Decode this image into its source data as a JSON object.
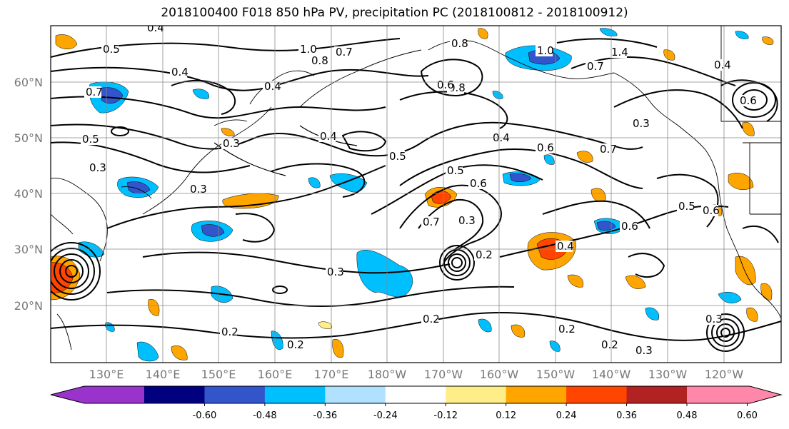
{
  "title": "2018100400 F018 850 hPa PV, precipitation PC (2018100812 - 2018100912)",
  "lat_labels": [
    "60°N",
    "50°N",
    "40°N",
    "30°N",
    "20°N"
  ],
  "lon_labels": [
    "130°E",
    "140°E",
    "150°E",
    "160°E",
    "170°E",
    "180°W",
    "170°W",
    "160°W",
    "150°W",
    "140°W",
    "130°W",
    "120°W"
  ],
  "colorbar": {
    "colors": [
      "#9933cc",
      "#000080",
      "#3355cc",
      "#00bfff",
      "#b0e2ff",
      "#ffffff",
      "#ffee88",
      "#ffa500",
      "#ff4500",
      "#b22222",
      "#ff88aa"
    ],
    "ticks": [
      "-0.60",
      "-0.48",
      "-0.36",
      "-0.24",
      "-0.12",
      "0.12",
      "0.24",
      "0.36",
      "0.48",
      "0.60"
    ]
  },
  "contour_labels": [
    "0.4",
    "0.5",
    "1.0",
    "0.8",
    "0.7",
    "1.0",
    "1.4",
    "0.7",
    "0.8",
    "0.4",
    "0.8",
    "0.4",
    "0.7",
    "0.6",
    "0.6",
    "0.5",
    "0.3",
    "0.4",
    "0.4",
    "0.6",
    "0.7",
    "0.5",
    "0.5",
    "0.6",
    "0.4",
    "0.3",
    "0.3",
    "0.7",
    "0.3",
    "0.3",
    "0.6",
    "0.4",
    "0.5",
    "0.6",
    "0.2",
    "0.2",
    "0.2",
    "0.2",
    "0.2",
    "0.3",
    "0.2",
    "0.3",
    "0.3"
  ]
}
